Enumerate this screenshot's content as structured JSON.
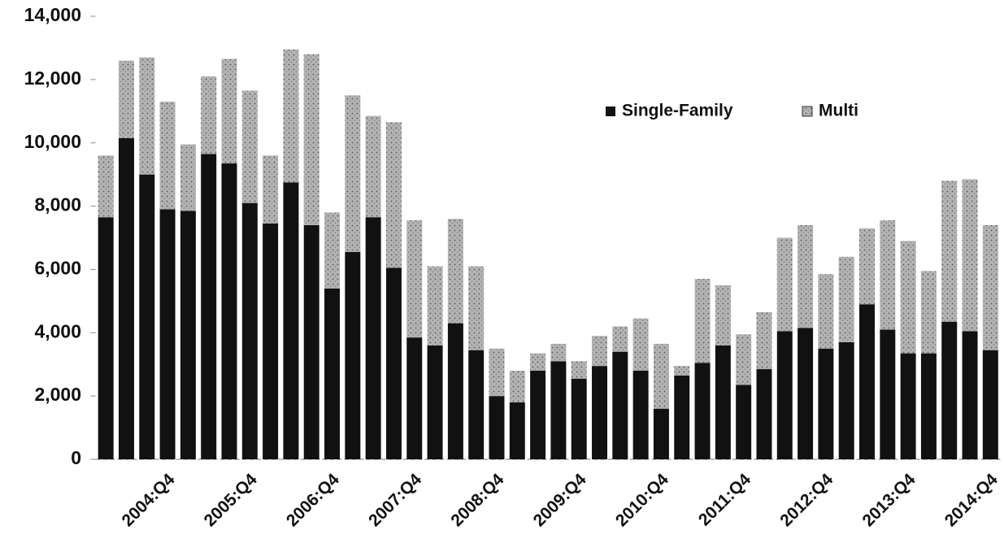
{
  "chart_data": {
    "type": "stacked-bar",
    "categories": [
      null,
      null,
      null,
      "2004:Q4",
      null,
      null,
      null,
      "2005:Q4",
      null,
      null,
      null,
      "2006:Q4",
      null,
      null,
      null,
      "2007:Q4",
      null,
      null,
      null,
      "2008:Q4",
      null,
      null,
      null,
      "2009:Q4",
      null,
      null,
      null,
      "2010:Q4",
      null,
      null,
      null,
      "2011:Q4",
      null,
      null,
      null,
      "2012:Q4",
      null,
      null,
      null,
      "2013:Q4",
      null,
      null,
      null,
      "2014:Q4"
    ],
    "series": [
      {
        "name": "Single-Family",
        "color": "#111111",
        "values": [
          7650,
          10150,
          9000,
          7900,
          7850,
          9650,
          9350,
          8100,
          7450,
          8750,
          7400,
          5400,
          6550,
          7650,
          6050,
          3850,
          3600,
          4300,
          3450,
          2000,
          1800,
          2800,
          3100,
          2550,
          2950,
          3400,
          2800,
          1600,
          2650,
          3050,
          3600,
          2350,
          2850,
          4050,
          4150,
          3500,
          3700,
          4900,
          4100,
          3350,
          3350,
          4350,
          4050,
          3450
        ]
      },
      {
        "name": "Multi",
        "color": "#b3b3b3",
        "values": [
          1950,
          2450,
          3700,
          3400,
          2100,
          2450,
          3300,
          3550,
          2150,
          4200,
          5400,
          2400,
          4950,
          3200,
          4600,
          3700,
          2500,
          3300,
          2650,
          1500,
          1000,
          550,
          550,
          550,
          950,
          800,
          1650,
          2050,
          300,
          2650,
          1900,
          1600,
          1800,
          2950,
          3250,
          2350,
          2700,
          2400,
          3450,
          3550,
          2600,
          4450,
          4800,
          3950
        ]
      }
    ],
    "ylim": [
      0,
      14000
    ],
    "yticks": [
      0,
      {
        "value": 2000,
        "label": "2,000"
      },
      {
        "value": 4000,
        "label": "4,000"
      },
      {
        "value": 6000,
        "label": "6,000"
      },
      {
        "value": 8000,
        "label": "8,000"
      },
      {
        "value": 10000,
        "label": "10,000"
      },
      {
        "value": 12000,
        "label": "12,000"
      },
      {
        "value": 14000,
        "label": "14,000"
      }
    ],
    "grid": false,
    "legend": "top-right"
  }
}
